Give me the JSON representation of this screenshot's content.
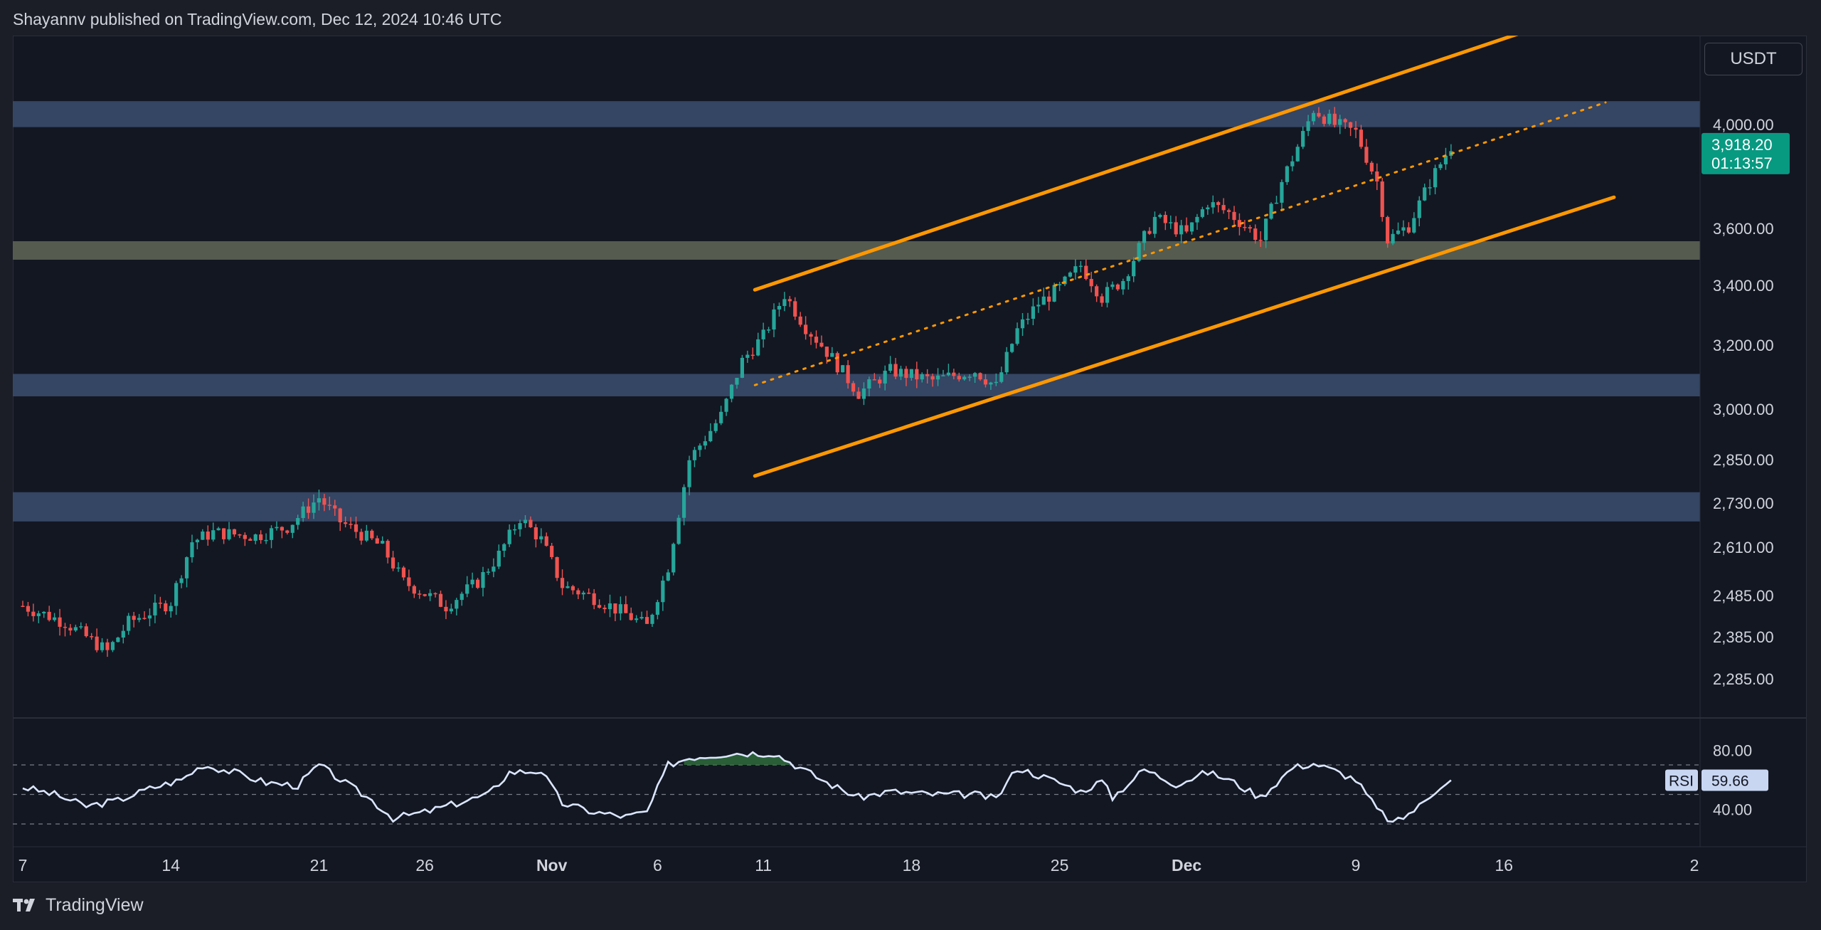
{
  "header": {
    "text": "Shayannv published on TradingView.com, Dec 12, 2024 10:46 UTC"
  },
  "currency": "USDT",
  "footer": {
    "brand": "TradingView"
  },
  "colors": {
    "background": "#131722",
    "up": "#26a69a",
    "down": "#ef5350",
    "channel": "#ff9800",
    "zone_blue": "#3a4a6b",
    "zone_gray": "#5d6354",
    "rsi_line": "#dbe6ff",
    "price_label_bg": "#089981"
  },
  "chart_data": {
    "type": "candlestick",
    "symbol_quote": "USDT",
    "price_axis": {
      "ticks": [
        {
          "value": 4000,
          "label": "4,000.00"
        },
        {
          "value": 3600,
          "label": "3,600.00"
        },
        {
          "value": 3400,
          "label": "3,400.00"
        },
        {
          "value": 3200,
          "label": "3,200.00"
        },
        {
          "value": 3000,
          "label": "3,000.00"
        },
        {
          "value": 2850,
          "label": "2,850.00"
        },
        {
          "value": 2730,
          "label": "2,730.00"
        },
        {
          "value": 2610,
          "label": "2,610.00"
        },
        {
          "value": 2485,
          "label": "2,485.00"
        },
        {
          "value": 2385,
          "label": "2,385.00"
        },
        {
          "value": 2285,
          "label": "2,285.00"
        }
      ]
    },
    "current_price": {
      "label": "3,918.20",
      "countdown": "01:13:57",
      "value": 3918.2
    },
    "x_axis": {
      "labels": [
        {
          "day": 0,
          "label": "7"
        },
        {
          "day": 7,
          "label": "14"
        },
        {
          "day": 14,
          "label": "21"
        },
        {
          "day": 19,
          "label": "26"
        },
        {
          "day": 25,
          "label": "Nov"
        },
        {
          "day": 30,
          "label": "6"
        },
        {
          "day": 35,
          "label": "11"
        },
        {
          "day": 42,
          "label": "18"
        },
        {
          "day": 49,
          "label": "25"
        },
        {
          "day": 55,
          "label": "Dec"
        },
        {
          "day": 63,
          "label": "9"
        },
        {
          "day": 70,
          "label": "16"
        },
        {
          "day": 79,
          "label": "2"
        }
      ]
    },
    "zones": [
      {
        "kind": "blue",
        "low": 3990,
        "high": 4090
      },
      {
        "kind": "gray",
        "low": 3490,
        "high": 3555
      },
      {
        "kind": "blue",
        "low": 3040,
        "high": 3110
      },
      {
        "kind": "blue",
        "low": 2680,
        "high": 2760
      }
    ],
    "channel": {
      "upper": [
        {
          "day": 34.6,
          "price": 3385
        },
        {
          "day": 71.8,
          "price": 4380
        }
      ],
      "lower": [
        {
          "day": 34.6,
          "price": 2805
        },
        {
          "day": 75.2,
          "price": 3720
        }
      ],
      "mid": [
        {
          "day": 34.6,
          "price": 3075
        },
        {
          "day": 74.8,
          "price": 4085
        }
      ]
    },
    "price_path": [
      {
        "day": 0,
        "price": 2460
      },
      {
        "day": 2,
        "price": 2420
      },
      {
        "day": 4,
        "price": 2350
      },
      {
        "day": 5,
        "price": 2420
      },
      {
        "day": 7,
        "price": 2470
      },
      {
        "day": 8,
        "price": 2625
      },
      {
        "day": 9,
        "price": 2650
      },
      {
        "day": 11,
        "price": 2640
      },
      {
        "day": 12.5,
        "price": 2665
      },
      {
        "day": 14,
        "price": 2745
      },
      {
        "day": 15,
        "price": 2680
      },
      {
        "day": 17,
        "price": 2610
      },
      {
        "day": 18,
        "price": 2520
      },
      {
        "day": 19,
        "price": 2490
      },
      {
        "day": 20,
        "price": 2460
      },
      {
        "day": 21.5,
        "price": 2520
      },
      {
        "day": 22.5,
        "price": 2590
      },
      {
        "day": 23.5,
        "price": 2690
      },
      {
        "day": 24.5,
        "price": 2630
      },
      {
        "day": 25.5,
        "price": 2510
      },
      {
        "day": 27,
        "price": 2480
      },
      {
        "day": 28.5,
        "price": 2440
      },
      {
        "day": 29.5,
        "price": 2410
      },
      {
        "day": 30.5,
        "price": 2560
      },
      {
        "day": 31.5,
        "price": 2850
      },
      {
        "day": 33,
        "price": 2980
      },
      {
        "day": 34,
        "price": 3150
      },
      {
        "day": 35,
        "price": 3230
      },
      {
        "day": 36,
        "price": 3370
      },
      {
        "day": 37,
        "price": 3260
      },
      {
        "day": 38,
        "price": 3180
      },
      {
        "day": 39.5,
        "price": 3050
      },
      {
        "day": 41,
        "price": 3120
      },
      {
        "day": 43,
        "price": 3090
      },
      {
        "day": 45,
        "price": 3120
      },
      {
        "day": 46,
        "price": 3070
      },
      {
        "day": 47,
        "price": 3250
      },
      {
        "day": 48,
        "price": 3340
      },
      {
        "day": 49,
        "price": 3390
      },
      {
        "day": 50,
        "price": 3470
      },
      {
        "day": 51,
        "price": 3360
      },
      {
        "day": 52,
        "price": 3420
      },
      {
        "day": 53.5,
        "price": 3640
      },
      {
        "day": 55,
        "price": 3580
      },
      {
        "day": 56,
        "price": 3700
      },
      {
        "day": 57,
        "price": 3660
      },
      {
        "day": 58.5,
        "price": 3560
      },
      {
        "day": 59.5,
        "price": 3780
      },
      {
        "day": 60.5,
        "price": 3960
      },
      {
        "day": 61,
        "price": 4060
      },
      {
        "day": 62,
        "price": 4000
      },
      {
        "day": 63,
        "price": 3970
      },
      {
        "day": 64,
        "price": 3780
      },
      {
        "day": 64.5,
        "price": 3560
      },
      {
        "day": 65.5,
        "price": 3610
      },
      {
        "day": 66.5,
        "price": 3780
      },
      {
        "day": 67.5,
        "price": 3918
      }
    ],
    "rsi": {
      "label": "RSI",
      "value": 59.66,
      "value_label": "59.66",
      "levels": [
        70,
        50,
        30
      ],
      "ticks": [
        {
          "value": 80,
          "label": "80.00"
        },
        {
          "value": 40,
          "label": "40.00"
        }
      ],
      "path": [
        {
          "day": 0,
          "value": 55
        },
        {
          "day": 1.5,
          "value": 50
        },
        {
          "day": 3,
          "value": 42
        },
        {
          "day": 4.5,
          "value": 46
        },
        {
          "day": 6,
          "value": 54
        },
        {
          "day": 7.5,
          "value": 60
        },
        {
          "day": 8.5,
          "value": 70
        },
        {
          "day": 10,
          "value": 65
        },
        {
          "day": 11.5,
          "value": 58
        },
        {
          "day": 13,
          "value": 56
        },
        {
          "day": 14,
          "value": 70
        },
        {
          "day": 15,
          "value": 60
        },
        {
          "day": 16.5,
          "value": 46
        },
        {
          "day": 17.5,
          "value": 34
        },
        {
          "day": 19,
          "value": 38
        },
        {
          "day": 20.5,
          "value": 44
        },
        {
          "day": 22,
          "value": 50
        },
        {
          "day": 23,
          "value": 65
        },
        {
          "day": 24.5,
          "value": 66
        },
        {
          "day": 25.5,
          "value": 44
        },
        {
          "day": 27,
          "value": 38
        },
        {
          "day": 28.5,
          "value": 35
        },
        {
          "day": 29.5,
          "value": 38
        },
        {
          "day": 30.5,
          "value": 70
        },
        {
          "day": 31.5,
          "value": 75
        },
        {
          "day": 33.5,
          "value": 78
        },
        {
          "day": 35.5,
          "value": 78
        },
        {
          "day": 36.5,
          "value": 70
        },
        {
          "day": 38,
          "value": 58
        },
        {
          "day": 39.5,
          "value": 48
        },
        {
          "day": 41,
          "value": 52
        },
        {
          "day": 43,
          "value": 50
        },
        {
          "day": 45,
          "value": 50
        },
        {
          "day": 46,
          "value": 47
        },
        {
          "day": 47,
          "value": 68
        },
        {
          "day": 48,
          "value": 63
        },
        {
          "day": 49,
          "value": 58
        },
        {
          "day": 50,
          "value": 52
        },
        {
          "day": 51,
          "value": 59
        },
        {
          "day": 51.5,
          "value": 48
        },
        {
          "day": 53,
          "value": 67
        },
        {
          "day": 54.5,
          "value": 57
        },
        {
          "day": 56,
          "value": 65
        },
        {
          "day": 57,
          "value": 60
        },
        {
          "day": 58.5,
          "value": 48
        },
        {
          "day": 60,
          "value": 68
        },
        {
          "day": 61,
          "value": 71
        },
        {
          "day": 62,
          "value": 66
        },
        {
          "day": 63,
          "value": 60
        },
        {
          "day": 64,
          "value": 40
        },
        {
          "day": 64.8,
          "value": 30
        },
        {
          "day": 66,
          "value": 42
        },
        {
          "day": 67,
          "value": 56
        },
        {
          "day": 67.5,
          "value": 60
        }
      ]
    }
  }
}
